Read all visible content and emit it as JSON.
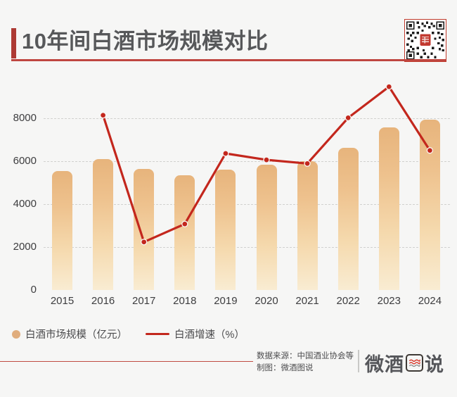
{
  "header": {
    "title": "10年间白酒市场规模对比"
  },
  "chart_data": {
    "type": "bar",
    "subtype": "bar-line-combo",
    "title": "10年间白酒市场规模对比",
    "categories": [
      "2015",
      "2016",
      "2017",
      "2018",
      "2019",
      "2020",
      "2021",
      "2022",
      "2023",
      "2024"
    ],
    "series": [
      {
        "name": "白酒市场规模（亿元）",
        "type": "bar",
        "values": [
          5550,
          6100,
          5650,
          5360,
          5630,
          5850,
          6000,
          6620,
          7570,
          7960
        ]
      },
      {
        "name": "白酒增速（%）",
        "type": "line",
        "axis": "secondary-unlabeled",
        "values_on_left_axis_scale": [
          null,
          8150,
          2240,
          3080,
          6370,
          6070,
          5900,
          8030,
          9480,
          6510
        ]
      }
    ],
    "yticks": [
      0,
      2000,
      4000,
      6000,
      8000
    ],
    "ylim": [
      0,
      9800
    ],
    "xlabel": "",
    "ylabel": "",
    "grid": "horizontal-dashed",
    "legend_position": "bottom-left"
  },
  "legend": {
    "bar_label": "白酒市场规模（亿元）",
    "line_label": "白酒增速（%）"
  },
  "footer": {
    "source_line": "数据来源：中国酒业协会等",
    "credit_line": "制图：微酒图说",
    "logo_prefix": "微酒",
    "logo_suffix": "说",
    "logo_text": "微酒图说"
  },
  "colors": {
    "accent_red": "#ad3a34",
    "underline_red": "#bf4640",
    "line_red": "#c3271d",
    "bar_gradient_top": "#e7b47c",
    "bar_gradient_bottom": "#f9ecd2",
    "legend_marker_tan": "#e0ad7d",
    "title_text": "#57585a",
    "axis_text": "#3d3d3f",
    "background": "#f6f6f5"
  },
  "icons": {
    "qr_code": "qr-code",
    "logo_wave": "wave-lines-icon"
  }
}
